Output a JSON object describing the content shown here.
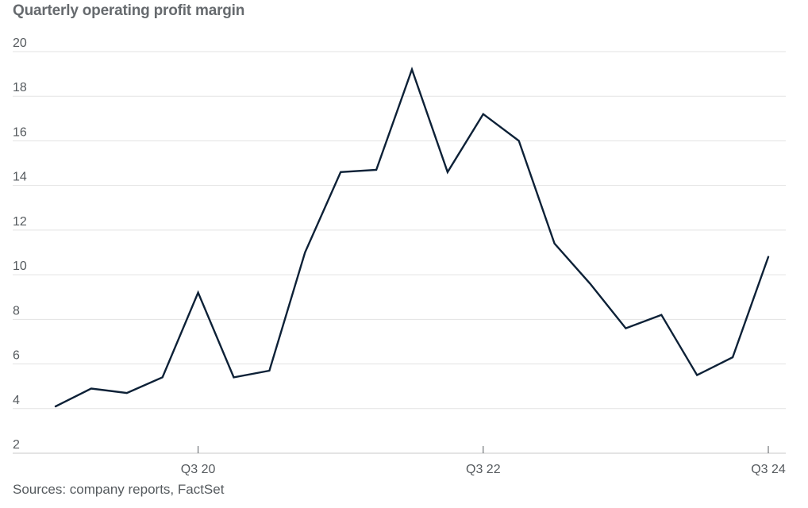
{
  "chart_data": {
    "type": "line",
    "title": "Quarterly operating profit margin",
    "source": "Sources: company reports, FactSet",
    "xlabel": "",
    "ylabel": "",
    "ylim": [
      2,
      20
    ],
    "yticks": [
      2,
      4,
      6,
      8,
      10,
      12,
      14,
      16,
      18,
      20
    ],
    "xtick_labels": [
      {
        "label": "Q3 20",
        "index": 4
      },
      {
        "label": "Q3 22",
        "index": 12
      },
      {
        "label": "Q3 24",
        "index": 20
      }
    ],
    "grid": true,
    "series": [
      {
        "color": "#0d2137",
        "values": [
          4.1,
          4.9,
          4.7,
          5.4,
          9.2,
          5.4,
          5.7,
          11.0,
          14.6,
          14.7,
          19.2,
          14.6,
          17.2,
          16.0,
          11.4,
          9.6,
          7.6,
          8.2,
          5.5,
          6.3,
          10.8
        ]
      }
    ]
  }
}
